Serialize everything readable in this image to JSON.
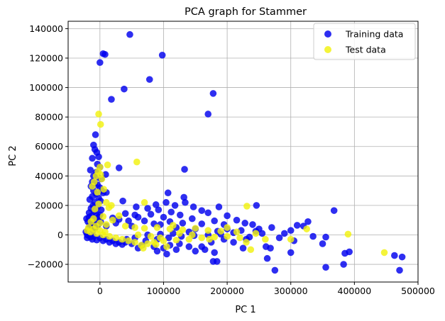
{
  "chart_data": {
    "type": "scatter",
    "title": "PCA graph for Stammer",
    "xlabel": "PC 1",
    "ylabel": "PC 2",
    "xlim": [
      -50000,
      500000
    ],
    "ylim": [
      -32000,
      145000
    ],
    "xticks": [
      0,
      100000,
      200000,
      300000,
      400000,
      500000
    ],
    "xtick_labels": [
      "0",
      "100000",
      "200000",
      "300000",
      "400000",
      "500000"
    ],
    "yticks": [
      -20000,
      0,
      20000,
      40000,
      60000,
      80000,
      100000,
      120000,
      140000
    ],
    "ytick_labels": [
      "−20000",
      "0",
      "20000",
      "40000",
      "60000",
      "80000",
      "100000",
      "120000",
      "140000"
    ],
    "grid": true,
    "legend_position": "top-right",
    "series": [
      {
        "name": "Training data",
        "color": "#0000ee",
        "points": [
          [
            47000,
            136000
          ],
          [
            5000,
            123000
          ],
          [
            8000,
            122500
          ],
          [
            98000,
            122000
          ],
          [
            0,
            117000
          ],
          [
            78000,
            105500
          ],
          [
            38000,
            99000
          ],
          [
            178000,
            96000
          ],
          [
            18000,
            92000
          ],
          [
            170000,
            82000
          ],
          [
            -7000,
            68000
          ],
          [
            -10000,
            61000
          ],
          [
            -8000,
            58000
          ],
          [
            -5000,
            56000
          ],
          [
            -2000,
            53000
          ],
          [
            -12000,
            52000
          ],
          [
            -4000,
            48000
          ],
          [
            0,
            46000
          ],
          [
            30000,
            45500
          ],
          [
            133000,
            44500
          ],
          [
            -15000,
            44000
          ],
          [
            -6000,
            42500
          ],
          [
            9000,
            41000
          ],
          [
            -10000,
            40000
          ],
          [
            -3000,
            39000
          ],
          [
            2000,
            38000
          ],
          [
            -12000,
            36000
          ],
          [
            -8000,
            35000
          ],
          [
            -4000,
            34000
          ],
          [
            -14000,
            33000
          ],
          [
            0,
            32000
          ],
          [
            3000,
            30000
          ],
          [
            -10000,
            30000
          ],
          [
            -6000,
            28000
          ],
          [
            5000,
            28500
          ],
          [
            10000,
            28800
          ],
          [
            -12000,
            26000
          ],
          [
            -2000,
            25000
          ],
          [
            -16000,
            24000
          ],
          [
            1000,
            23000
          ],
          [
            -8000,
            22000
          ],
          [
            36000,
            23000
          ],
          [
            -11000,
            20000
          ],
          [
            -4000,
            19000
          ],
          [
            -14000,
            18000
          ],
          [
            2000,
            17000
          ],
          [
            -9000,
            16000
          ],
          [
            -17000,
            15000
          ],
          [
            -6000,
            14500
          ],
          [
            0,
            13500
          ],
          [
            107000,
            28500
          ],
          [
            132000,
            25500
          ],
          [
            104000,
            22000
          ],
          [
            134000,
            22000
          ],
          [
            88000,
            20500
          ],
          [
            118000,
            20000
          ],
          [
            147000,
            19000
          ],
          [
            187000,
            19000
          ],
          [
            246000,
            20000
          ],
          [
            57000,
            19000
          ],
          [
            75000,
            18000
          ],
          [
            92000,
            17000
          ],
          [
            160000,
            16500
          ],
          [
            112000,
            15500
          ],
          [
            170000,
            15000
          ],
          [
            80000,
            14000
          ],
          [
            126000,
            13500
          ],
          [
            200000,
            13000
          ],
          [
            40000,
            14500
          ],
          [
            55000,
            13500
          ],
          [
            100000,
            12000
          ],
          [
            60000,
            12000
          ],
          [
            145000,
            11000
          ],
          [
            20000,
            11500
          ],
          [
            30000,
            10500
          ],
          [
            215000,
            10000
          ],
          [
            180000,
            9500
          ],
          [
            110000,
            9000
          ],
          [
            70000,
            9500
          ],
          [
            45000,
            9500
          ],
          [
            130000,
            8000
          ],
          [
            228000,
            8000
          ],
          [
            160000,
            7500
          ],
          [
            85000,
            7500
          ],
          [
            25000,
            8000
          ],
          [
            95000,
            7000
          ],
          [
            195000,
            7000
          ],
          [
            240000,
            7000
          ],
          [
            270000,
            5000
          ],
          [
            320000,
            6000
          ],
          [
            327000,
            9000
          ],
          [
            368000,
            16500
          ],
          [
            310000,
            6500
          ],
          [
            300000,
            3000
          ],
          [
            250000,
            4000
          ],
          [
            200000,
            4000
          ],
          [
            150000,
            4000
          ],
          [
            120000,
            5000
          ],
          [
            50000,
            6000
          ],
          [
            10000,
            6000
          ],
          [
            255000,
            1000
          ],
          [
            290000,
            1000
          ],
          [
            335000,
            -1000
          ],
          [
            282000,
            -2000
          ],
          [
            355000,
            -1500
          ],
          [
            305000,
            -4000
          ],
          [
            350000,
            -6000
          ],
          [
            261000,
            -8000
          ],
          [
            268000,
            -9000
          ],
          [
            225000,
            -9000
          ],
          [
            230000,
            -3000
          ],
          [
            195000,
            -3000
          ],
          [
            210000,
            -5000
          ],
          [
            175000,
            -5000
          ],
          [
            160000,
            -8000
          ],
          [
            140000,
            -8000
          ],
          [
            125000,
            -6000
          ],
          [
            110000,
            -7000
          ],
          [
            100000,
            -9000
          ],
          [
            85000,
            -8000
          ],
          [
            66000,
            -7000
          ],
          [
            50000,
            -6000
          ],
          [
            40000,
            -5000
          ],
          [
            30000,
            -5000
          ],
          [
            20000,
            -4000
          ],
          [
            10000,
            -3000
          ],
          [
            0,
            -2000
          ],
          [
            -10000,
            -1000
          ],
          [
            -20000,
            0
          ],
          [
            -15000,
            -1500
          ],
          [
            300000,
            -12000
          ],
          [
            263000,
            -16000
          ],
          [
            275000,
            -24000
          ],
          [
            385000,
            -12500
          ],
          [
            392000,
            -11500
          ],
          [
            383000,
            -20000
          ],
          [
            355000,
            -22000
          ],
          [
            463000,
            -14000
          ],
          [
            475000,
            -15000
          ],
          [
            471000,
            -24000
          ],
          [
            178000,
            -18000
          ],
          [
            184000,
            -18000
          ],
          [
            150000,
            -11000
          ],
          [
            165000,
            -10000
          ],
          [
            180000,
            -12000
          ],
          [
            90000,
            -11000
          ],
          [
            105000,
            -13000
          ],
          [
            120000,
            -10000
          ],
          [
            60000,
            -9000
          ],
          [
            35000,
            -6500
          ],
          [
            -22000,
            2000
          ],
          [
            -18000,
            4000
          ],
          [
            -14000,
            6000
          ],
          [
            -10000,
            8000
          ],
          [
            -6000,
            10000
          ],
          [
            -2000,
            12000
          ],
          [
            -20000,
            -2000
          ],
          [
            -12000,
            -3000
          ],
          [
            -5000,
            -3500
          ],
          [
            5000,
            -4000
          ],
          [
            15000,
            -5000
          ],
          [
            25000,
            -6000
          ],
          [
            42000,
            -3000
          ],
          [
            55000,
            -2000
          ],
          [
            72000,
            -4000
          ],
          [
            90000,
            -3000
          ],
          [
            108000,
            -2000
          ],
          [
            128000,
            -1000
          ],
          [
            148000,
            -500
          ],
          [
            170000,
            0
          ],
          [
            190000,
            500
          ],
          [
            210000,
            1500
          ],
          [
            235000,
            -1500
          ],
          [
            245000,
            2500
          ],
          [
            222000,
            3000
          ],
          [
            185000,
            2500
          ],
          [
            140000,
            2000
          ],
          [
            115000,
            1000
          ],
          [
            95000,
            500
          ],
          [
            75000,
            0
          ],
          [
            -19000,
            9000
          ],
          [
            -21000,
            11000
          ],
          [
            -17000,
            12000
          ],
          [
            -13000,
            13000
          ],
          [
            -9000,
            11000
          ],
          [
            -16000,
            7000
          ],
          [
            -11000,
            3000
          ],
          [
            -7000,
            5000
          ],
          [
            -3000,
            7000
          ],
          [
            1000,
            9000
          ]
        ]
      },
      {
        "name": "Test data",
        "color": "#f2f20f",
        "points": [
          [
            -2000,
            82000
          ],
          [
            1000,
            75000
          ],
          [
            0,
            46000
          ],
          [
            12000,
            47500
          ],
          [
            58000,
            49500
          ],
          [
            -3000,
            43000
          ],
          [
            1000,
            41000
          ],
          [
            -6000,
            40000
          ],
          [
            3000,
            38000
          ],
          [
            -9000,
            36000
          ],
          [
            -12000,
            33000
          ],
          [
            6000,
            31000
          ],
          [
            -4000,
            29000
          ],
          [
            10000,
            22000
          ],
          [
            -2000,
            21000
          ],
          [
            18000,
            20000
          ],
          [
            70000,
            22000
          ],
          [
            231000,
            19500
          ],
          [
            14000,
            18500
          ],
          [
            -8000,
            17500
          ],
          [
            30000,
            13000
          ],
          [
            5000,
            12500
          ],
          [
            -10000,
            11000
          ],
          [
            20000,
            10000
          ],
          [
            -14000,
            9000
          ],
          [
            0,
            8000
          ],
          [
            10000,
            7000
          ],
          [
            -6000,
            6000
          ],
          [
            40000,
            6000
          ],
          [
            55000,
            5000
          ],
          [
            70000,
            4500
          ],
          [
            90000,
            5000
          ],
          [
            110000,
            4000
          ],
          [
            130000,
            3500
          ],
          [
            150000,
            4500
          ],
          [
            170000,
            3000
          ],
          [
            190000,
            2500
          ],
          [
            215000,
            2000
          ],
          [
            245000,
            1000
          ],
          [
            325000,
            4000
          ],
          [
            390000,
            500
          ],
          [
            447000,
            -12000
          ],
          [
            237000,
            -10000
          ],
          [
            300000,
            -3000
          ],
          [
            260000,
            -3000
          ],
          [
            220000,
            -2000
          ],
          [
            200000,
            -1000
          ],
          [
            180000,
            -1500
          ],
          [
            160000,
            -2000
          ],
          [
            140000,
            -3000
          ],
          [
            120000,
            -3500
          ],
          [
            100000,
            -4000
          ],
          [
            85000,
            -5000
          ],
          [
            75000,
            -6000
          ],
          [
            65000,
            -7000
          ],
          [
            55000,
            -5000
          ],
          [
            45000,
            -4000
          ],
          [
            35000,
            -3000
          ],
          [
            25000,
            -2000
          ],
          [
            15000,
            -1000
          ],
          [
            5000,
            0
          ],
          [
            -5000,
            1000
          ],
          [
            -15000,
            2000
          ],
          [
            -20000,
            3000
          ],
          [
            -18000,
            5000
          ],
          [
            -10000,
            4000
          ],
          [
            0,
            3000
          ],
          [
            8000,
            2000
          ],
          [
            60000,
            0
          ],
          [
            80000,
            -1000
          ],
          [
            95000,
            -2000
          ],
          [
            105000,
            -8000
          ],
          [
            68000,
            -9000
          ],
          [
            88000,
            -6500
          ],
          [
            125000,
            1000
          ],
          [
            145000,
            0
          ],
          [
            172000,
            -3000
          ],
          [
            200000,
            5000
          ],
          [
            230000,
            -5000
          ],
          [
            115000,
            6500
          ]
        ]
      }
    ]
  }
}
